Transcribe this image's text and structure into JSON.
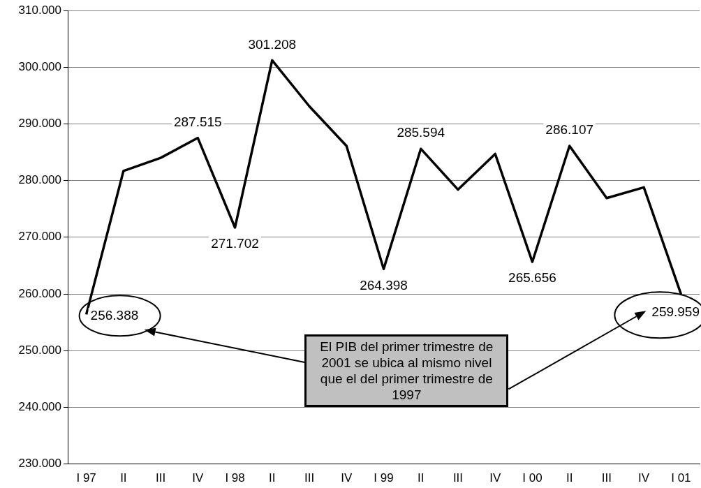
{
  "chart_data": {
    "type": "line",
    "categories": [
      "I 97",
      "II",
      "III",
      "IV",
      "I 98",
      "II",
      "III",
      "IV",
      "I 99",
      "II",
      "III",
      "IV",
      "I 00",
      "II",
      "III",
      "IV",
      "I 01"
    ],
    "series": [
      {
        "color": "#000000",
        "values": [
          256388,
          281700,
          284000,
          287515,
          271702,
          301208,
          293100,
          286100,
          264398,
          285594,
          278400,
          284700,
          265656,
          286107,
          276900,
          278800,
          259959
        ],
        "value_labels": [
          "256.388",
          null,
          null,
          "287.515",
          "271.702",
          "301.208",
          null,
          null,
          "264.398",
          "285.594",
          null,
          null,
          "265.656",
          "286.107",
          null,
          null,
          "259.959"
        ]
      }
    ],
    "ylim": [
      230000,
      310000
    ],
    "yticks": [
      {
        "value": 230000,
        "label": "230.000"
      },
      {
        "value": 240000,
        "label": "240.000"
      },
      {
        "value": 250000,
        "label": "250.000"
      },
      {
        "value": 260000,
        "label": "260.000"
      },
      {
        "value": 270000,
        "label": "270.000"
      },
      {
        "value": 280000,
        "label": "280.000"
      },
      {
        "value": 290000,
        "label": "290.000"
      },
      {
        "value": 300000,
        "label": "300.000"
      },
      {
        "value": 310000,
        "label": "310.000"
      }
    ],
    "grid": "y",
    "legend": false,
    "marker": "none",
    "line_style": "solid",
    "annotations": [
      "El PIB del primer trimestre de 2001 se ubica al mismo nivel que el del primer trimestre de 1997"
    ]
  }
}
